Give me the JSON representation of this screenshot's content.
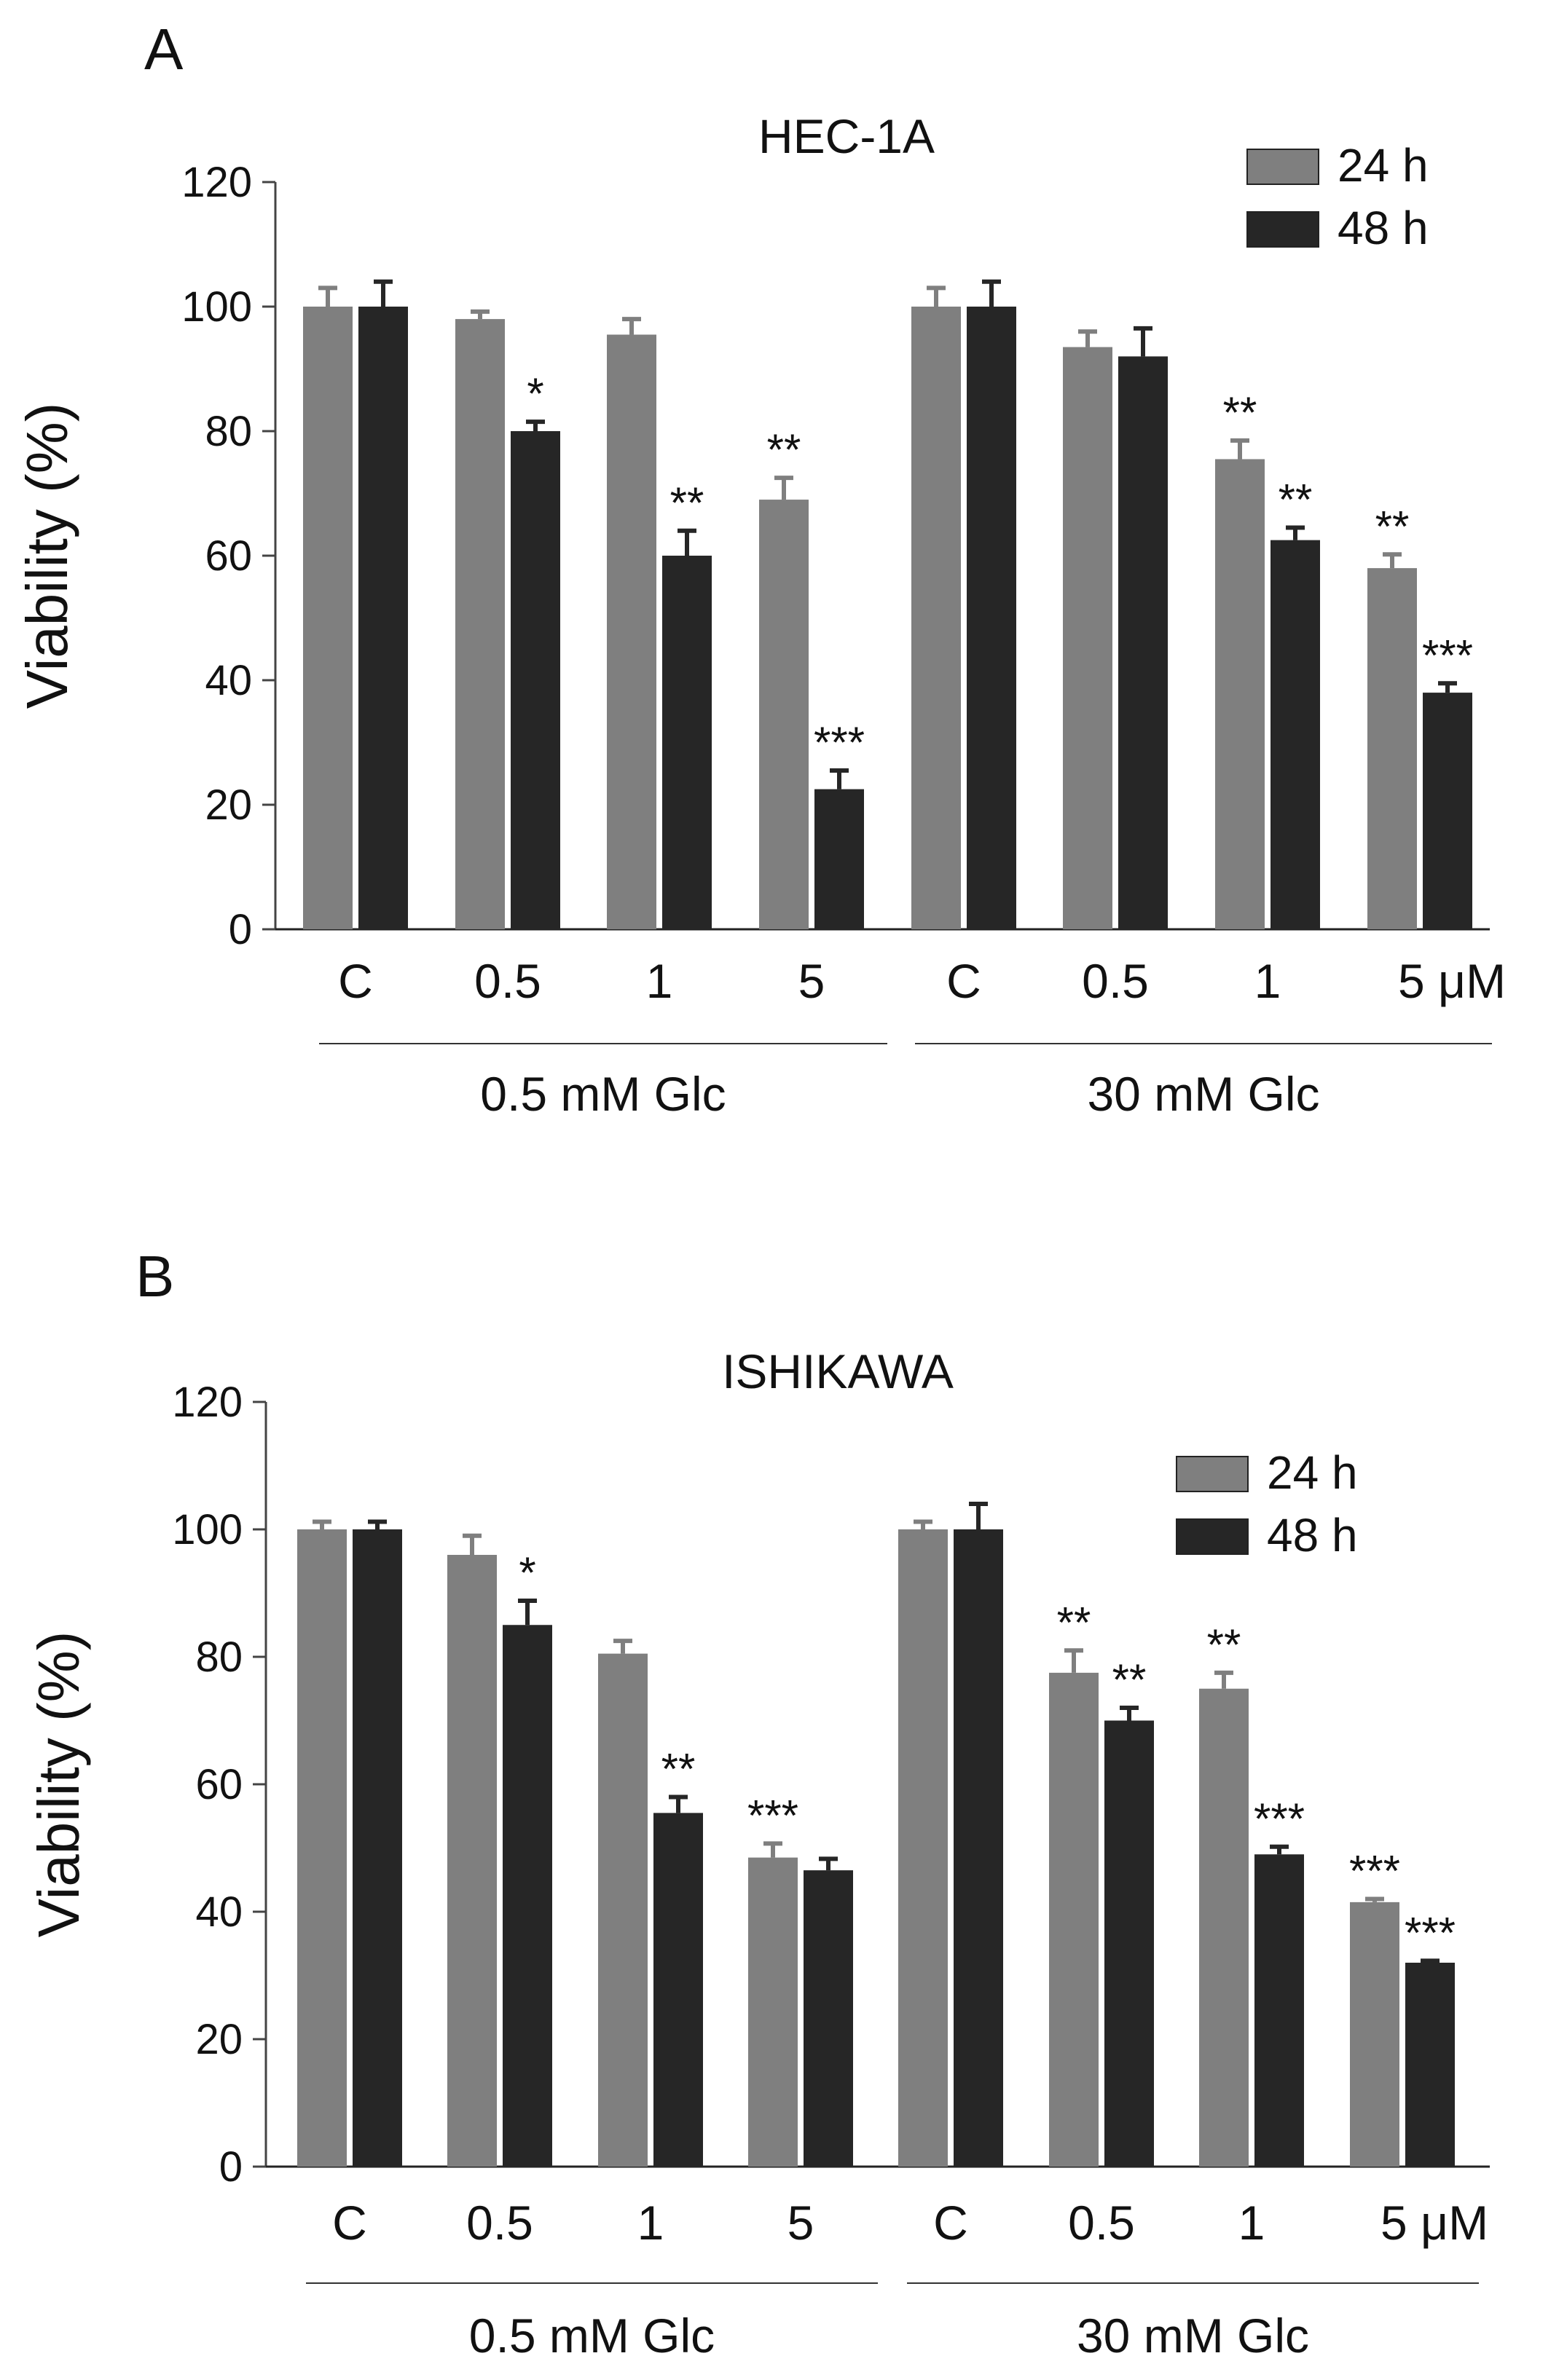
{
  "chart_data": [
    {
      "panel_label": "A",
      "type": "bar",
      "title": "HEC-1A",
      "ylabel": "Viability (%)",
      "xlabel": "",
      "ylim": [
        0,
        120
      ],
      "yticks": [
        0,
        20,
        40,
        60,
        80,
        100,
        120
      ],
      "legend_position": "top-right",
      "grid": false,
      "categories": [
        "C",
        "0.5",
        "1",
        "5",
        "C",
        "0.5",
        "1",
        "5 μM"
      ],
      "groups": [
        {
          "label": "0.5 mM Glc",
          "start": 0,
          "end": 3
        },
        {
          "label": "30 mM Glc",
          "start": 4,
          "end": 7
        }
      ],
      "series": [
        {
          "name": "24 h",
          "color": "#7f7f7f",
          "values": [
            100,
            98,
            95.5,
            69,
            100,
            93.5,
            75.5,
            58
          ],
          "errors": [
            3,
            1.2,
            2.5,
            3.5,
            3,
            2.5,
            3,
            2.2
          ],
          "significance": [
            "",
            "",
            "",
            "**",
            "",
            "",
            "**",
            "**"
          ]
        },
        {
          "name": "48 h",
          "color": "#262626",
          "values": [
            100,
            80,
            60,
            22.5,
            100,
            92,
            62.5,
            38
          ],
          "errors": [
            4,
            1.5,
            4,
            3,
            4,
            4.5,
            2,
            1.5
          ],
          "significance": [
            "",
            "*",
            "**",
            "***",
            "",
            "",
            "**",
            "***"
          ]
        }
      ]
    },
    {
      "panel_label": "B",
      "type": "bar",
      "title": "ISHIKAWA",
      "ylabel": "Viability (%)",
      "xlabel": "",
      "ylim": [
        0,
        120
      ],
      "yticks": [
        0,
        20,
        40,
        60,
        80,
        100,
        120
      ],
      "legend_position": "top-right",
      "grid": false,
      "categories": [
        "C",
        "0.5",
        "1",
        "5",
        "C",
        "0.5",
        "1",
        "5 μM"
      ],
      "groups": [
        {
          "label": "0.5 mM Glc",
          "start": 0,
          "end": 3
        },
        {
          "label": "30 mM Glc",
          "start": 4,
          "end": 7
        }
      ],
      "series": [
        {
          "name": "24 h",
          "color": "#7f7f7f",
          "values": [
            100,
            96,
            80.5,
            48.5,
            100,
            77.5,
            75,
            41.5
          ],
          "errors": [
            1.2,
            3,
            2,
            2.2,
            1.2,
            3.5,
            2.5,
            0.5
          ],
          "significance": [
            "",
            "",
            "",
            "***",
            "",
            "**",
            "**",
            "***"
          ]
        },
        {
          "name": "48 h",
          "color": "#262626",
          "values": [
            100,
            85,
            55.5,
            46.5,
            100,
            70,
            49,
            32
          ],
          "errors": [
            1.2,
            3.8,
            2.5,
            1.8,
            4,
            2,
            1.2,
            0.3
          ],
          "significance": [
            "",
            "*",
            "**",
            "",
            "",
            "**",
            "***",
            "***"
          ]
        }
      ]
    }
  ]
}
